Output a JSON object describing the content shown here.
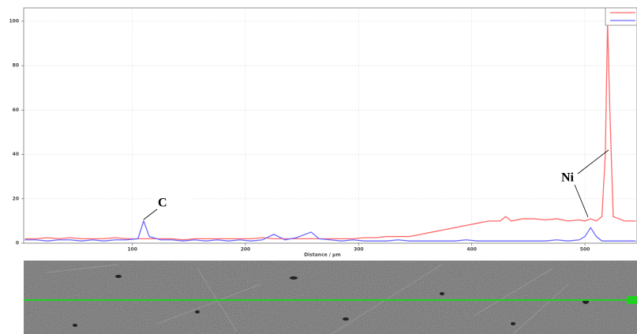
{
  "chart_data": {
    "type": "line",
    "x_label": "Distance / µm",
    "x": [
      5,
      15,
      25,
      35,
      45,
      55,
      65,
      75,
      85,
      95,
      105,
      110,
      115,
      125,
      135,
      145,
      155,
      165,
      175,
      185,
      195,
      205,
      215,
      225,
      235,
      245,
      258,
      265,
      275,
      285,
      295,
      305,
      315,
      325,
      335,
      345,
      355,
      365,
      375,
      385,
      395,
      405,
      415,
      425,
      430,
      435,
      445,
      455,
      465,
      475,
      485,
      495,
      500,
      505,
      510,
      515,
      518,
      520,
      522,
      525,
      530,
      535,
      545
    ],
    "series": [
      {
        "color": "#ff6a6a",
        "values": [
          2,
          2,
          2.5,
          2,
          2.5,
          2,
          2,
          2,
          2.5,
          2,
          2,
          2,
          2,
          2,
          2,
          1.5,
          2,
          2,
          2,
          2,
          2,
          2,
          2.5,
          2,
          2,
          2,
          2,
          2,
          2,
          2,
          2,
          2.5,
          2.5,
          3,
          3,
          3,
          4,
          5,
          6,
          7,
          8,
          9,
          10,
          10,
          12,
          10,
          11,
          11,
          10.5,
          11,
          10,
          10.5,
          10,
          11,
          10,
          12,
          40,
          100,
          60,
          12,
          11,
          10,
          10
        ]
      },
      {
        "color": "#6a6aff",
        "values": [
          1.5,
          1.5,
          1,
          1.5,
          1.5,
          1,
          1.5,
          1,
          1.5,
          1.5,
          2,
          10,
          3,
          1.5,
          1.5,
          1,
          1.5,
          1,
          1.5,
          1,
          1.5,
          1,
          1.5,
          4,
          1.5,
          2.5,
          5,
          2,
          1.5,
          1,
          1.5,
          1,
          1,
          1,
          1.5,
          1,
          1,
          1,
          1,
          1,
          1.5,
          1,
          1,
          1,
          1,
          1,
          1,
          1,
          1,
          1.5,
          1,
          1.5,
          3,
          7,
          3,
          1,
          1,
          1,
          1,
          1,
          1,
          1,
          1
        ]
      }
    ],
    "annotations": [
      {
        "text": "C"
      },
      {
        "text": "Ni"
      }
    ],
    "xlim": [
      4,
      546
    ],
    "ylim": [
      0,
      106
    ],
    "xticks": [
      100,
      200,
      300,
      400,
      500
    ],
    "yticks": [
      0,
      20,
      40,
      60,
      80,
      100
    ],
    "grid": true,
    "legend": "upper right"
  }
}
